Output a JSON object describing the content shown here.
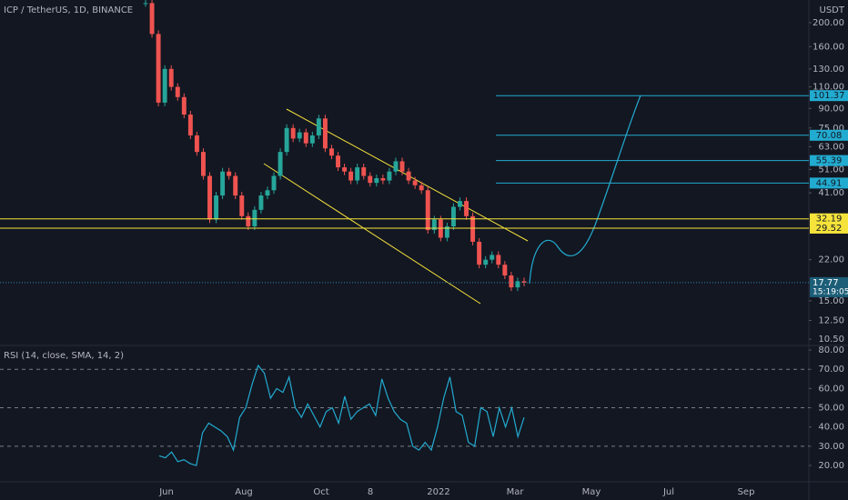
{
  "chart_data": [
    {
      "type": "candles",
      "title": "ICP / TetherUS, 1D, BINANCE",
      "unit": "USDT",
      "log_scale": true,
      "ylim": [
        9.9,
        247
      ],
      "yticks": [
        {
          "value": 10.5,
          "label": "10.50"
        },
        {
          "value": 12.5,
          "label": "12.50"
        },
        {
          "value": 15,
          "label": "15.00"
        },
        {
          "value": 22,
          "label": "22.00"
        },
        {
          "value": 41,
          "label": "41.00"
        },
        {
          "value": 51,
          "label": "51.00"
        },
        {
          "value": 63,
          "label": "63.00"
        },
        {
          "value": 75,
          "label": "75.00"
        },
        {
          "value": 90,
          "label": "90.00"
        },
        {
          "value": 110,
          "label": "110.00"
        },
        {
          "value": 130,
          "label": "130.00"
        },
        {
          "value": 160,
          "label": "160.00"
        },
        {
          "value": 200,
          "label": "200.00"
        }
      ],
      "up_color": "#26a69a",
      "down_color": "#ef5350",
      "closes": [
        240,
        180,
        95,
        130,
        110,
        100,
        85,
        70,
        60,
        48,
        32,
        40,
        50,
        48,
        40,
        33,
        30,
        35,
        40,
        42,
        48,
        60,
        75,
        68,
        72,
        65,
        70,
        82,
        62,
        58,
        52,
        50,
        46,
        52,
        48,
        45,
        47,
        46,
        50,
        55,
        50,
        46,
        44,
        42,
        29,
        32,
        27,
        30,
        36,
        38,
        33,
        26,
        21,
        22,
        23,
        21,
        19,
        17,
        18,
        17.77
      ],
      "levels": [
        {
          "value": 101.37,
          "color": "#22abd0"
        },
        {
          "value": 70.08,
          "color": "#22abd0"
        },
        {
          "value": 55.39,
          "color": "#22abd0"
        },
        {
          "value": 44.91,
          "color": "#22abd0"
        },
        {
          "value": 32.19,
          "color": "#f5e33b"
        },
        {
          "value": 29.52,
          "color": "#f5e33b"
        }
      ],
      "last_price": 17.77,
      "countdown": "15:19:05"
    },
    {
      "type": "line",
      "title": "RSI (14, close, SMA, 14, 2)",
      "color": "#22abd0",
      "ylim": [
        11.5,
        82.4
      ],
      "yticks": [
        {
          "value": 20,
          "label": "20.00"
        },
        {
          "value": 30,
          "label": "30.00"
        },
        {
          "value": 40,
          "label": "40.00"
        },
        {
          "value": 50,
          "label": "50.00"
        },
        {
          "value": 60,
          "label": "60.00"
        },
        {
          "value": 70,
          "label": "70.00"
        },
        {
          "value": 80,
          "label": "80.00"
        }
      ],
      "bands": [
        70,
        50,
        30
      ],
      "values": [
        25,
        24,
        27,
        22,
        23,
        21,
        20,
        37,
        42,
        40,
        38,
        35,
        28,
        45,
        50,
        62,
        72,
        68,
        55,
        60,
        58,
        66,
        50,
        45,
        52,
        46,
        40,
        48,
        50,
        42,
        56,
        44,
        48,
        50,
        52,
        46,
        65,
        55,
        48,
        44,
        42,
        30,
        28,
        32,
        28,
        40,
        55,
        66,
        48,
        46,
        32,
        30,
        50,
        48,
        35,
        50,
        40,
        50,
        35,
        45
      ],
      "xticks": [
        "Jun",
        "Aug",
        "Oct",
        "8",
        "2022",
        "Mar",
        "May",
        "Jul",
        "Sep"
      ]
    }
  ]
}
